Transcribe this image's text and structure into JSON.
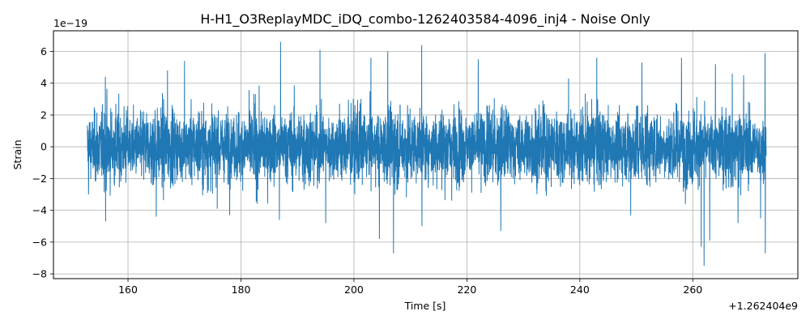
{
  "chart_data": {
    "type": "line",
    "title": "H-H1_O3ReplayMDC_iDQ_combo-1262403584-4096_inj4 - Noise Only",
    "xlabel": "Time [s]",
    "ylabel": "Strain",
    "x_offset_label": "+1.262404e9",
    "y_scale_label": "1e−19",
    "xlim": [
      146.8,
      278.6
    ],
    "ylim": [
      -8.3,
      7.3
    ],
    "x_ticks": [
      160,
      180,
      200,
      220,
      240,
      260
    ],
    "x_tick_labels": [
      "160",
      "180",
      "200",
      "220",
      "240",
      "260"
    ],
    "y_ticks": [
      -8,
      -6,
      -4,
      -2,
      0,
      2,
      4,
      6
    ],
    "y_tick_labels": [
      "−8",
      "−6",
      "−4",
      "−2",
      "0",
      "2",
      "4",
      "6"
    ],
    "grid": true,
    "series": [
      {
        "color": "#1f77b4",
        "x_range": [
          152.8,
          273.0
        ],
        "rms": 1.3,
        "peaks": [
          {
            "x": 153.0,
            "y": 2.7
          },
          {
            "x": 153.0,
            "y": -3.0
          },
          {
            "x": 156.0,
            "y": 4.4
          },
          {
            "x": 156.0,
            "y": -4.7
          },
          {
            "x": 165.0,
            "y": -4.4
          },
          {
            "x": 167.0,
            "y": 4.8
          },
          {
            "x": 170.0,
            "y": 5.4
          },
          {
            "x": 178.0,
            "y": -4.3
          },
          {
            "x": 187.0,
            "y": 6.6
          },
          {
            "x": 186.8,
            "y": -4.6
          },
          {
            "x": 194.0,
            "y": 6.1
          },
          {
            "x": 195.0,
            "y": -4.8
          },
          {
            "x": 203.0,
            "y": 5.6
          },
          {
            "x": 204.5,
            "y": -5.8
          },
          {
            "x": 206.0,
            "y": 6.0
          },
          {
            "x": 207.0,
            "y": -6.7
          },
          {
            "x": 212.0,
            "y": 6.4
          },
          {
            "x": 212.0,
            "y": -5.0
          },
          {
            "x": 222.0,
            "y": 5.5
          },
          {
            "x": 226.0,
            "y": -5.3
          },
          {
            "x": 238.0,
            "y": 4.3
          },
          {
            "x": 243.0,
            "y": 5.6
          },
          {
            "x": 249.0,
            "y": -4.3
          },
          {
            "x": 251.0,
            "y": 5.3
          },
          {
            "x": 258.0,
            "y": 5.6
          },
          {
            "x": 261.5,
            "y": -6.3
          },
          {
            "x": 262.0,
            "y": -7.5
          },
          {
            "x": 263.0,
            "y": -5.9
          },
          {
            "x": 264.0,
            "y": 5.2
          },
          {
            "x": 267.0,
            "y": 4.6
          },
          {
            "x": 268.0,
            "y": -4.8
          },
          {
            "x": 269.0,
            "y": 4.5
          },
          {
            "x": 272.0,
            "y": -4.5
          },
          {
            "x": 272.8,
            "y": 5.9
          },
          {
            "x": 272.8,
            "y": -6.7
          }
        ]
      }
    ]
  }
}
